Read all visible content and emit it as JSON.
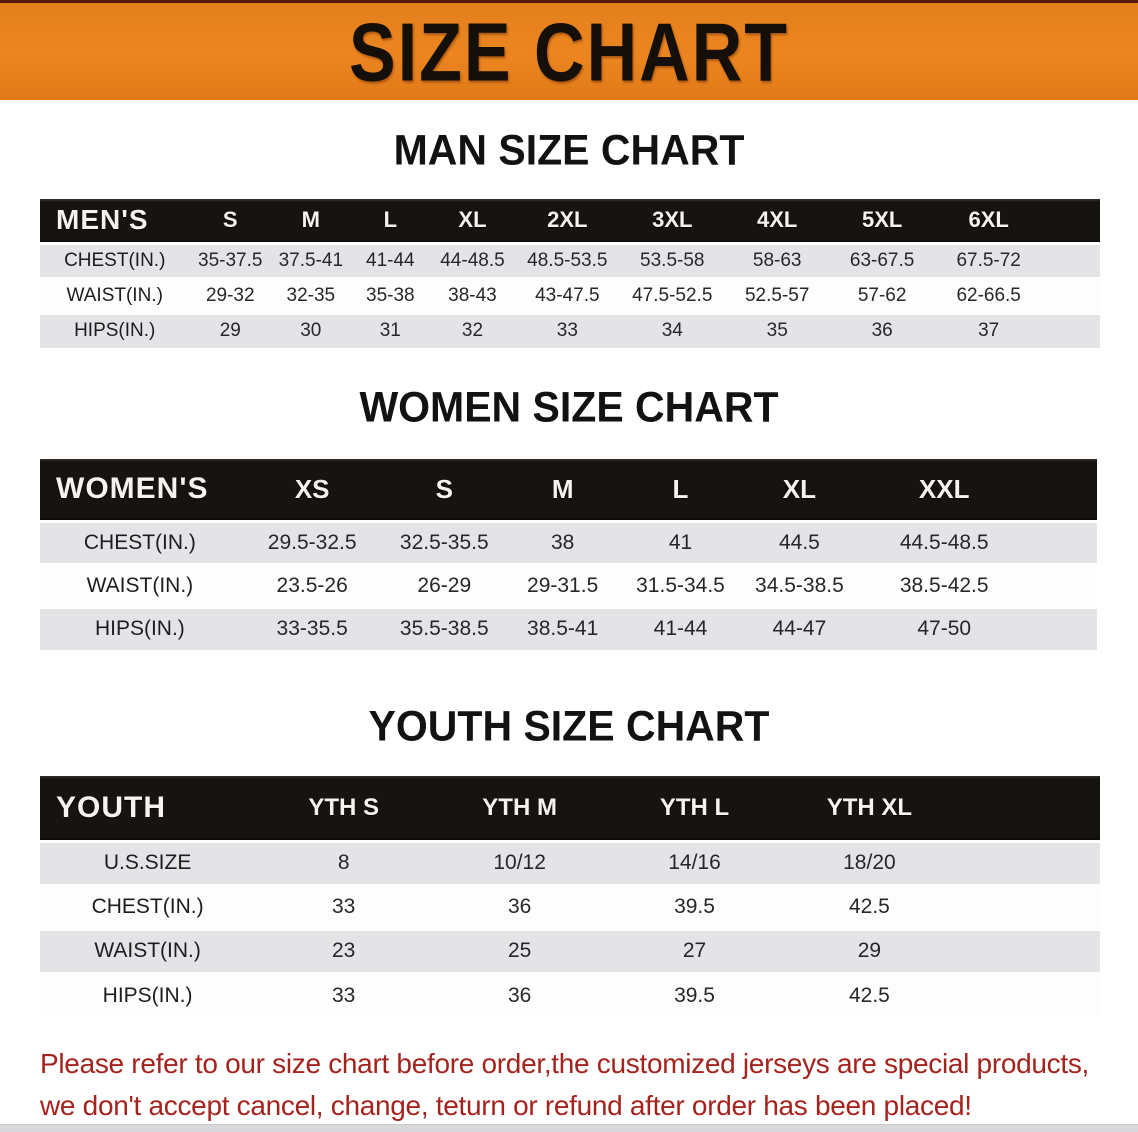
{
  "banner": {
    "title": "SIZE CHART",
    "bg_color": "#ec8520",
    "text_color": "#140f08"
  },
  "sections": {
    "men": {
      "heading": "MAN SIZE CHART",
      "table": {
        "label": "MEN'S",
        "columns": [
          "S",
          "M",
          "L",
          "XL",
          "2XL",
          "3XL",
          "4XL",
          "5XL",
          "6XL"
        ],
        "rows": [
          {
            "label": "CHEST(IN.)",
            "values": [
              "35-37.5",
              "37.5-41",
              "41-44",
              "44-48.5",
              "48.5-53.5",
              "53.5-58",
              "58-63",
              "63-67.5",
              "67.5-72"
            ]
          },
          {
            "label": "WAIST(IN.)",
            "values": [
              "29-32",
              "32-35",
              "35-38",
              "38-43",
              "43-47.5",
              "47.5-52.5",
              "52.5-57",
              "57-62",
              "62-66.5"
            ]
          },
          {
            "label": "HIPS(IN.)",
            "values": [
              "29",
              "30",
              "31",
              "32",
              "33",
              "34",
              "35",
              "36",
              "37"
            ]
          }
        ]
      }
    },
    "women": {
      "heading": "WOMEN SIZE CHART",
      "table": {
        "label": "WOMEN'S",
        "columns": [
          "XS",
          "S",
          "M",
          "L",
          "XL",
          "XXL"
        ],
        "rows": [
          {
            "label": "CHEST(IN.)",
            "values": [
              "29.5-32.5",
              "32.5-35.5",
              "38",
              "41",
              "44.5",
              "44.5-48.5"
            ]
          },
          {
            "label": "WAIST(IN.)",
            "values": [
              "23.5-26",
              "26-29",
              "29-31.5",
              "31.5-34.5",
              "34.5-38.5",
              "38.5-42.5"
            ]
          },
          {
            "label": "HIPS(IN.)",
            "values": [
              "33-35.5",
              "35.5-38.5",
              "38.5-41",
              "41-44",
              "44-47",
              "47-50"
            ]
          }
        ]
      }
    },
    "youth": {
      "heading": "YOUTH SIZE CHART",
      "table": {
        "label": "YOUTH",
        "columns": [
          "YTH S",
          "YTH M",
          "YTH L",
          "YTH XL"
        ],
        "rows": [
          {
            "label": "U.S.SIZE",
            "values": [
              "8",
              "10/12",
              "14/16",
              "18/20"
            ]
          },
          {
            "label": "CHEST(IN.)",
            "values": [
              "33",
              "36",
              "39.5",
              "42.5"
            ]
          },
          {
            "label": "WAIST(IN.)",
            "values": [
              "23",
              "25",
              "27",
              "29"
            ]
          },
          {
            "label": "HIPS(IN.)",
            "values": [
              "33",
              "36",
              "39.5",
              "42.5"
            ]
          }
        ]
      }
    }
  },
  "disclaimer": {
    "line1": "Please refer to our size chart before order,the customized jerseys are special products,",
    "line2": "we don't accept cancel, change, teturn or refund after order has been placed!",
    "color": "#a5231c"
  },
  "table_header_colors": {
    "header_bg": "#171310",
    "header_text": "#f4f3f1",
    "row_shaded": "#e4e4e6",
    "row_plain": "#fdfdfd"
  }
}
